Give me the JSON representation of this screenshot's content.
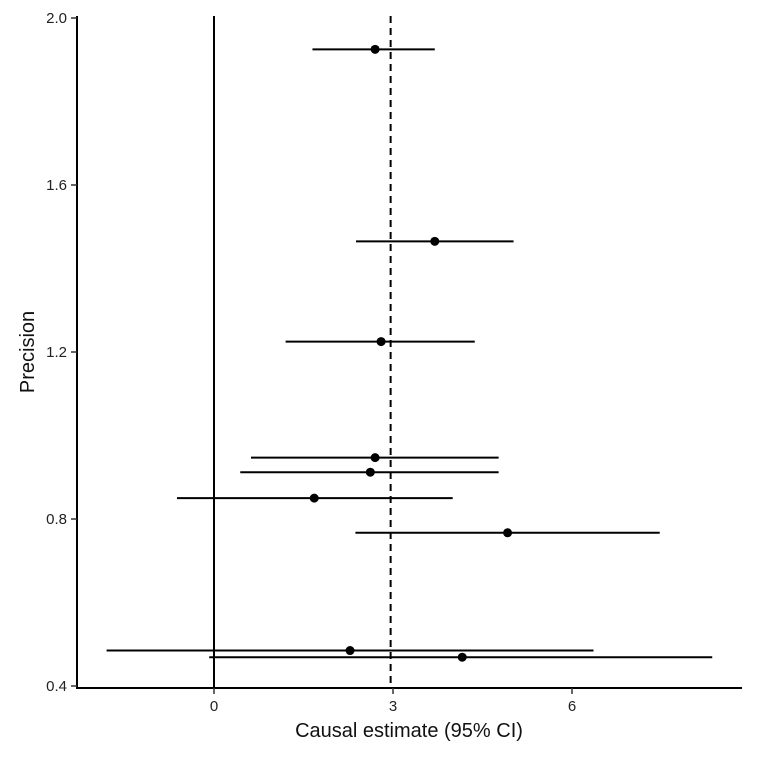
{
  "chart_data": {
    "type": "scatter",
    "subtype": "funnel-plot-with-error-bars",
    "title": "",
    "xlabel": "Causal estimate (95% CI)",
    "ylabel": "Precision",
    "xlim": [
      -2.3,
      8.8
    ],
    "ylim": [
      0.4,
      2.0
    ],
    "x_ticks": [
      {
        "value": 0,
        "label": "0"
      },
      {
        "value": 3,
        "label": "3"
      },
      {
        "value": 6,
        "label": "6"
      }
    ],
    "y_ticks": [
      {
        "value": 0.4,
        "label": "0.4"
      },
      {
        "value": 0.8,
        "label": "0.8"
      },
      {
        "value": 1.2,
        "label": "1.2"
      },
      {
        "value": 1.6,
        "label": "1.6"
      },
      {
        "value": 2.0,
        "label": "2.0"
      }
    ],
    "reference_lines": [
      {
        "axis": "x",
        "value": 0,
        "style": "solid"
      },
      {
        "axis": "x",
        "value": 2.96,
        "style": "dashed"
      }
    ],
    "points": [
      {
        "estimate": 2.7,
        "precision": 1.925,
        "ci_low": 1.65,
        "ci_high": 3.7
      },
      {
        "estimate": 3.7,
        "precision": 1.465,
        "ci_low": 2.38,
        "ci_high": 5.02
      },
      {
        "estimate": 2.8,
        "precision": 1.225,
        "ci_low": 1.2,
        "ci_high": 4.37
      },
      {
        "estimate": 2.7,
        "precision": 0.947,
        "ci_low": 0.62,
        "ci_high": 4.77
      },
      {
        "estimate": 2.62,
        "precision": 0.912,
        "ci_low": 0.44,
        "ci_high": 4.77
      },
      {
        "estimate": 1.68,
        "precision": 0.85,
        "ci_low": -0.62,
        "ci_high": 4.0
      },
      {
        "estimate": 4.92,
        "precision": 0.767,
        "ci_low": 2.37,
        "ci_high": 7.47
      },
      {
        "estimate": 2.28,
        "precision": 0.485,
        "ci_low": -1.8,
        "ci_high": 6.36
      },
      {
        "estimate": 4.16,
        "precision": 0.469,
        "ci_low": -0.08,
        "ci_high": 8.35
      }
    ],
    "grid": false,
    "legend": "none"
  }
}
